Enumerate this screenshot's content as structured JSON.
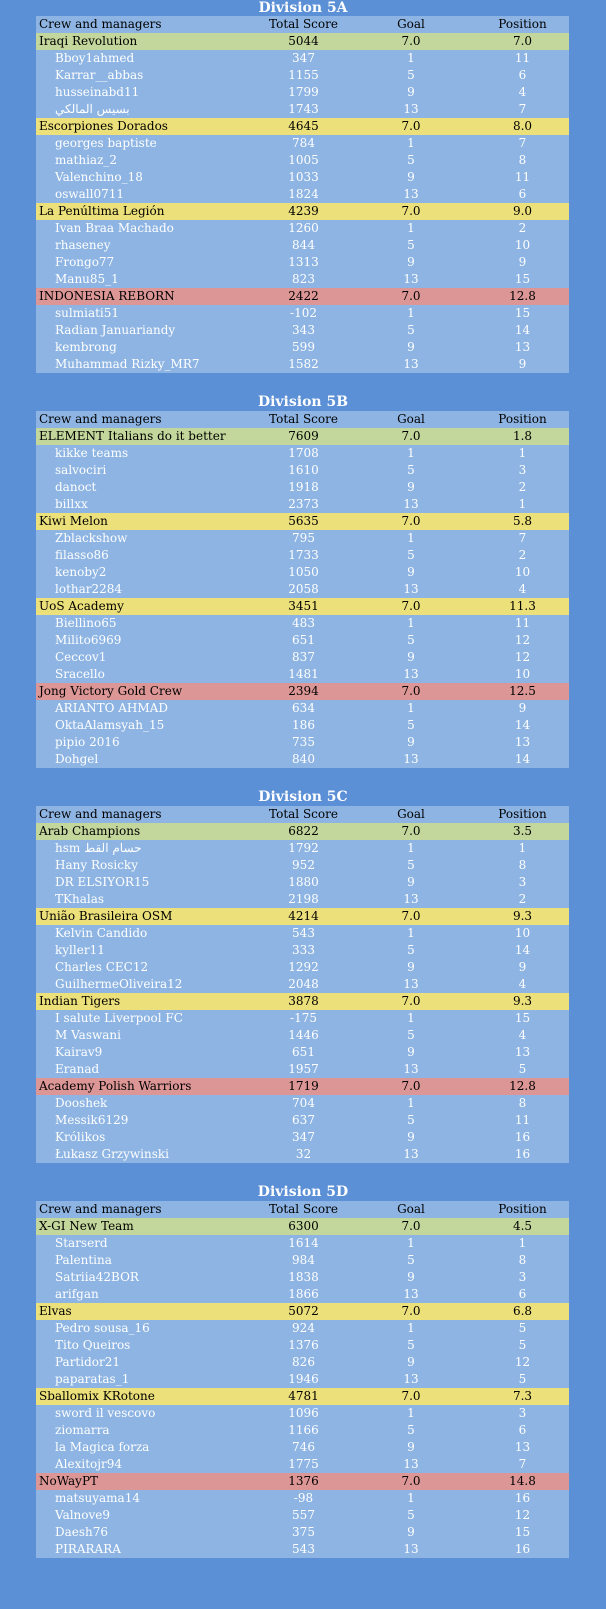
{
  "headers": {
    "name": "Crew and managers",
    "score": "Total Score",
    "goal": "Goal",
    "position": "Position"
  },
  "colors": {
    "background": "#5b8fd6",
    "table": "#8db4e2",
    "green": "#c3d69b",
    "yellow": "#ece07a",
    "red": "#dd9696"
  },
  "divisions": [
    {
      "title": "Division 5A",
      "crews": [
        {
          "name": "Iraqi Revolution",
          "score": "5044",
          "goal": "7.0",
          "position": "7.0",
          "color": "green",
          "members": [
            {
              "name": "Bboy1ahmed",
              "score": "347",
              "goal": "1",
              "position": "11"
            },
            {
              "name": "Karrar__abbas",
              "score": "1155",
              "goal": "5",
              "position": "6"
            },
            {
              "name": "husseinabd11",
              "score": "1799",
              "goal": "9",
              "position": "4"
            },
            {
              "name": "بسیس المالكي",
              "score": "1743",
              "goal": "13",
              "position": "7"
            }
          ]
        },
        {
          "name": "Escorpiones Dorados",
          "score": "4645",
          "goal": "7.0",
          "position": "8.0",
          "color": "yellow",
          "members": [
            {
              "name": "georges baptiste",
              "score": "784",
              "goal": "1",
              "position": "7"
            },
            {
              "name": "mathiaz_2",
              "score": "1005",
              "goal": "5",
              "position": "8"
            },
            {
              "name": "Valenchino_18",
              "score": "1033",
              "goal": "9",
              "position": "11"
            },
            {
              "name": "oswall0711",
              "score": "1824",
              "goal": "13",
              "position": "6"
            }
          ]
        },
        {
          "name": "La Penúltima Legión",
          "score": "4239",
          "goal": "7.0",
          "position": "9.0",
          "color": "yellow",
          "members": [
            {
              "name": "Ivan Braa Machado",
              "score": "1260",
              "goal": "1",
              "position": "2"
            },
            {
              "name": "rhaseney",
              "score": "844",
              "goal": "5",
              "position": "10"
            },
            {
              "name": "Frongo77",
              "score": "1313",
              "goal": "9",
              "position": "9"
            },
            {
              "name": "Manu85_1",
              "score": "823",
              "goal": "13",
              "position": "15"
            }
          ]
        },
        {
          "name": "INDONESIA REBORN",
          "score": "2422",
          "goal": "7.0",
          "position": "12.8",
          "color": "red",
          "members": [
            {
              "name": "sulmiati51",
              "score": "-102",
              "goal": "1",
              "position": "15"
            },
            {
              "name": "Radian Januariandy",
              "score": "343",
              "goal": "5",
              "position": "14"
            },
            {
              "name": "kembrong",
              "score": "599",
              "goal": "9",
              "position": "13"
            },
            {
              "name": "Muhammad Rizky_MR7",
              "score": "1582",
              "goal": "13",
              "position": "9"
            }
          ]
        }
      ]
    },
    {
      "title": "Division 5B",
      "crews": [
        {
          "name": "ELEMENT Italians do it better",
          "score": "7609",
          "goal": "7.0",
          "position": "1.8",
          "color": "green",
          "members": [
            {
              "name": "kikke teams",
              "score": "1708",
              "goal": "1",
              "position": "1"
            },
            {
              "name": "salvociri",
              "score": "1610",
              "goal": "5",
              "position": "3"
            },
            {
              "name": "danoct",
              "score": "1918",
              "goal": "9",
              "position": "2"
            },
            {
              "name": "billxx",
              "score": "2373",
              "goal": "13",
              "position": "1"
            }
          ]
        },
        {
          "name": "Kiwi Melon",
          "score": "5635",
          "goal": "7.0",
          "position": "5.8",
          "color": "yellow",
          "members": [
            {
              "name": "Zblackshow",
              "score": "795",
              "goal": "1",
              "position": "7"
            },
            {
              "name": "filasso86",
              "score": "1733",
              "goal": "5",
              "position": "2"
            },
            {
              "name": "kenoby2",
              "score": "1050",
              "goal": "9",
              "position": "10"
            },
            {
              "name": "lothar2284",
              "score": "2058",
              "goal": "13",
              "position": "4"
            }
          ]
        },
        {
          "name": "UoS Academy",
          "score": "3451",
          "goal": "7.0",
          "position": "11.3",
          "color": "yellow",
          "members": [
            {
              "name": "Biellino65",
              "score": "483",
              "goal": "1",
              "position": "11"
            },
            {
              "name": "Milito6969",
              "score": "651",
              "goal": "5",
              "position": "12"
            },
            {
              "name": "Ceccov1",
              "score": "837",
              "goal": "9",
              "position": "12"
            },
            {
              "name": "Sracello",
              "score": "1481",
              "goal": "13",
              "position": "10"
            }
          ]
        },
        {
          "name": "Jong Victory Gold Crew",
          "score": "2394",
          "goal": "7.0",
          "position": "12.5",
          "color": "red",
          "members": [
            {
              "name": "ARIANTO AHMAD",
              "score": "634",
              "goal": "1",
              "position": "9"
            },
            {
              "name": "OktaAlamsyah_15",
              "score": "186",
              "goal": "5",
              "position": "14"
            },
            {
              "name": "pipio 2016",
              "score": "735",
              "goal": "9",
              "position": "13"
            },
            {
              "name": "Dohgel",
              "score": "840",
              "goal": "13",
              "position": "14"
            }
          ]
        }
      ]
    },
    {
      "title": "Division 5C",
      "crews": [
        {
          "name": "Arab Champions",
          "score": "6822",
          "goal": "7.0",
          "position": "3.5",
          "color": "green",
          "members": [
            {
              "name": "hsm حسام القط",
              "score": "1792",
              "goal": "1",
              "position": "1"
            },
            {
              "name": "Hany Rosicky",
              "score": "952",
              "goal": "5",
              "position": "8"
            },
            {
              "name": "DR ELSIYOR15",
              "score": "1880",
              "goal": "9",
              "position": "3"
            },
            {
              "name": "TKhalas",
              "score": "2198",
              "goal": "13",
              "position": "2"
            }
          ]
        },
        {
          "name": "União Brasileira OSM",
          "score": "4214",
          "goal": "7.0",
          "position": "9.3",
          "color": "yellow",
          "members": [
            {
              "name": "Kelvin Candido",
              "score": "543",
              "goal": "1",
              "position": "10"
            },
            {
              "name": "kyller11",
              "score": "333",
              "goal": "5",
              "position": "14"
            },
            {
              "name": "Charles CEC12",
              "score": "1292",
              "goal": "9",
              "position": "9"
            },
            {
              "name": "GuilhermeOliveira12",
              "score": "2048",
              "goal": "13",
              "position": "4"
            }
          ]
        },
        {
          "name": "Indian Tigers",
          "score": "3878",
          "goal": "7.0",
          "position": "9.3",
          "color": "yellow",
          "members": [
            {
              "name": "I salute Liverpool FC",
              "score": "-175",
              "goal": "1",
              "position": "15"
            },
            {
              "name": "M Vaswani",
              "score": "1446",
              "goal": "5",
              "position": "4"
            },
            {
              "name": "Kairav9",
              "score": "651",
              "goal": "9",
              "position": "13"
            },
            {
              "name": "Eranad",
              "score": "1957",
              "goal": "13",
              "position": "5"
            }
          ]
        },
        {
          "name": "Academy Polish Warriors",
          "score": "1719",
          "goal": "7.0",
          "position": "12.8",
          "color": "red",
          "members": [
            {
              "name": "Dooshek",
              "score": "704",
              "goal": "1",
              "position": "8"
            },
            {
              "name": "Messik6129",
              "score": "637",
              "goal": "5",
              "position": "11"
            },
            {
              "name": "Królikos",
              "score": "347",
              "goal": "9",
              "position": "16"
            },
            {
              "name": "Łukasz Grzywinski",
              "score": "32",
              "goal": "13",
              "position": "16"
            }
          ]
        }
      ]
    },
    {
      "title": "Division 5D",
      "crews": [
        {
          "name": "X-GI New Team",
          "score": "6300",
          "goal": "7.0",
          "position": "4.5",
          "color": "green",
          "members": [
            {
              "name": "Starserd",
              "score": "1614",
              "goal": "1",
              "position": "1"
            },
            {
              "name": "Palentina",
              "score": "984",
              "goal": "5",
              "position": "8"
            },
            {
              "name": "Satriia42BOR",
              "score": "1838",
              "goal": "9",
              "position": "3"
            },
            {
              "name": "arifgan",
              "score": "1866",
              "goal": "13",
              "position": "6"
            }
          ]
        },
        {
          "name": "Elvas",
          "score": "5072",
          "goal": "7.0",
          "position": "6.8",
          "color": "yellow",
          "members": [
            {
              "name": "Pedro sousa_16",
              "score": "924",
              "goal": "1",
              "position": "5"
            },
            {
              "name": "Tito Queiros",
              "score": "1376",
              "goal": "5",
              "position": "5"
            },
            {
              "name": "Partidor21",
              "score": "826",
              "goal": "9",
              "position": "12"
            },
            {
              "name": "paparatas_1",
              "score": "1946",
              "goal": "13",
              "position": "5"
            }
          ]
        },
        {
          "name": "Sballomix KRotone",
          "score": "4781",
          "goal": "7.0",
          "position": "7.3",
          "color": "yellow",
          "members": [
            {
              "name": "sword il vescovo",
              "score": "1096",
              "goal": "1",
              "position": "3"
            },
            {
              "name": "ziomarra",
              "score": "1166",
              "goal": "5",
              "position": "6"
            },
            {
              "name": "la Magica forza",
              "score": "746",
              "goal": "9",
              "position": "13"
            },
            {
              "name": "Alexitojr94",
              "score": "1775",
              "goal": "13",
              "position": "7"
            }
          ]
        },
        {
          "name": "NoWayPT",
          "score": "1376",
          "goal": "7.0",
          "position": "14.8",
          "color": "red",
          "members": [
            {
              "name": "matsuyama14",
              "score": "-98",
              "goal": "1",
              "position": "16"
            },
            {
              "name": "Valnove9",
              "score": "557",
              "goal": "5",
              "position": "12"
            },
            {
              "name": "Daesh76",
              "score": "375",
              "goal": "9",
              "position": "15"
            },
            {
              "name": "PIRARARA",
              "score": "543",
              "goal": "13",
              "position": "16"
            }
          ]
        }
      ]
    }
  ]
}
